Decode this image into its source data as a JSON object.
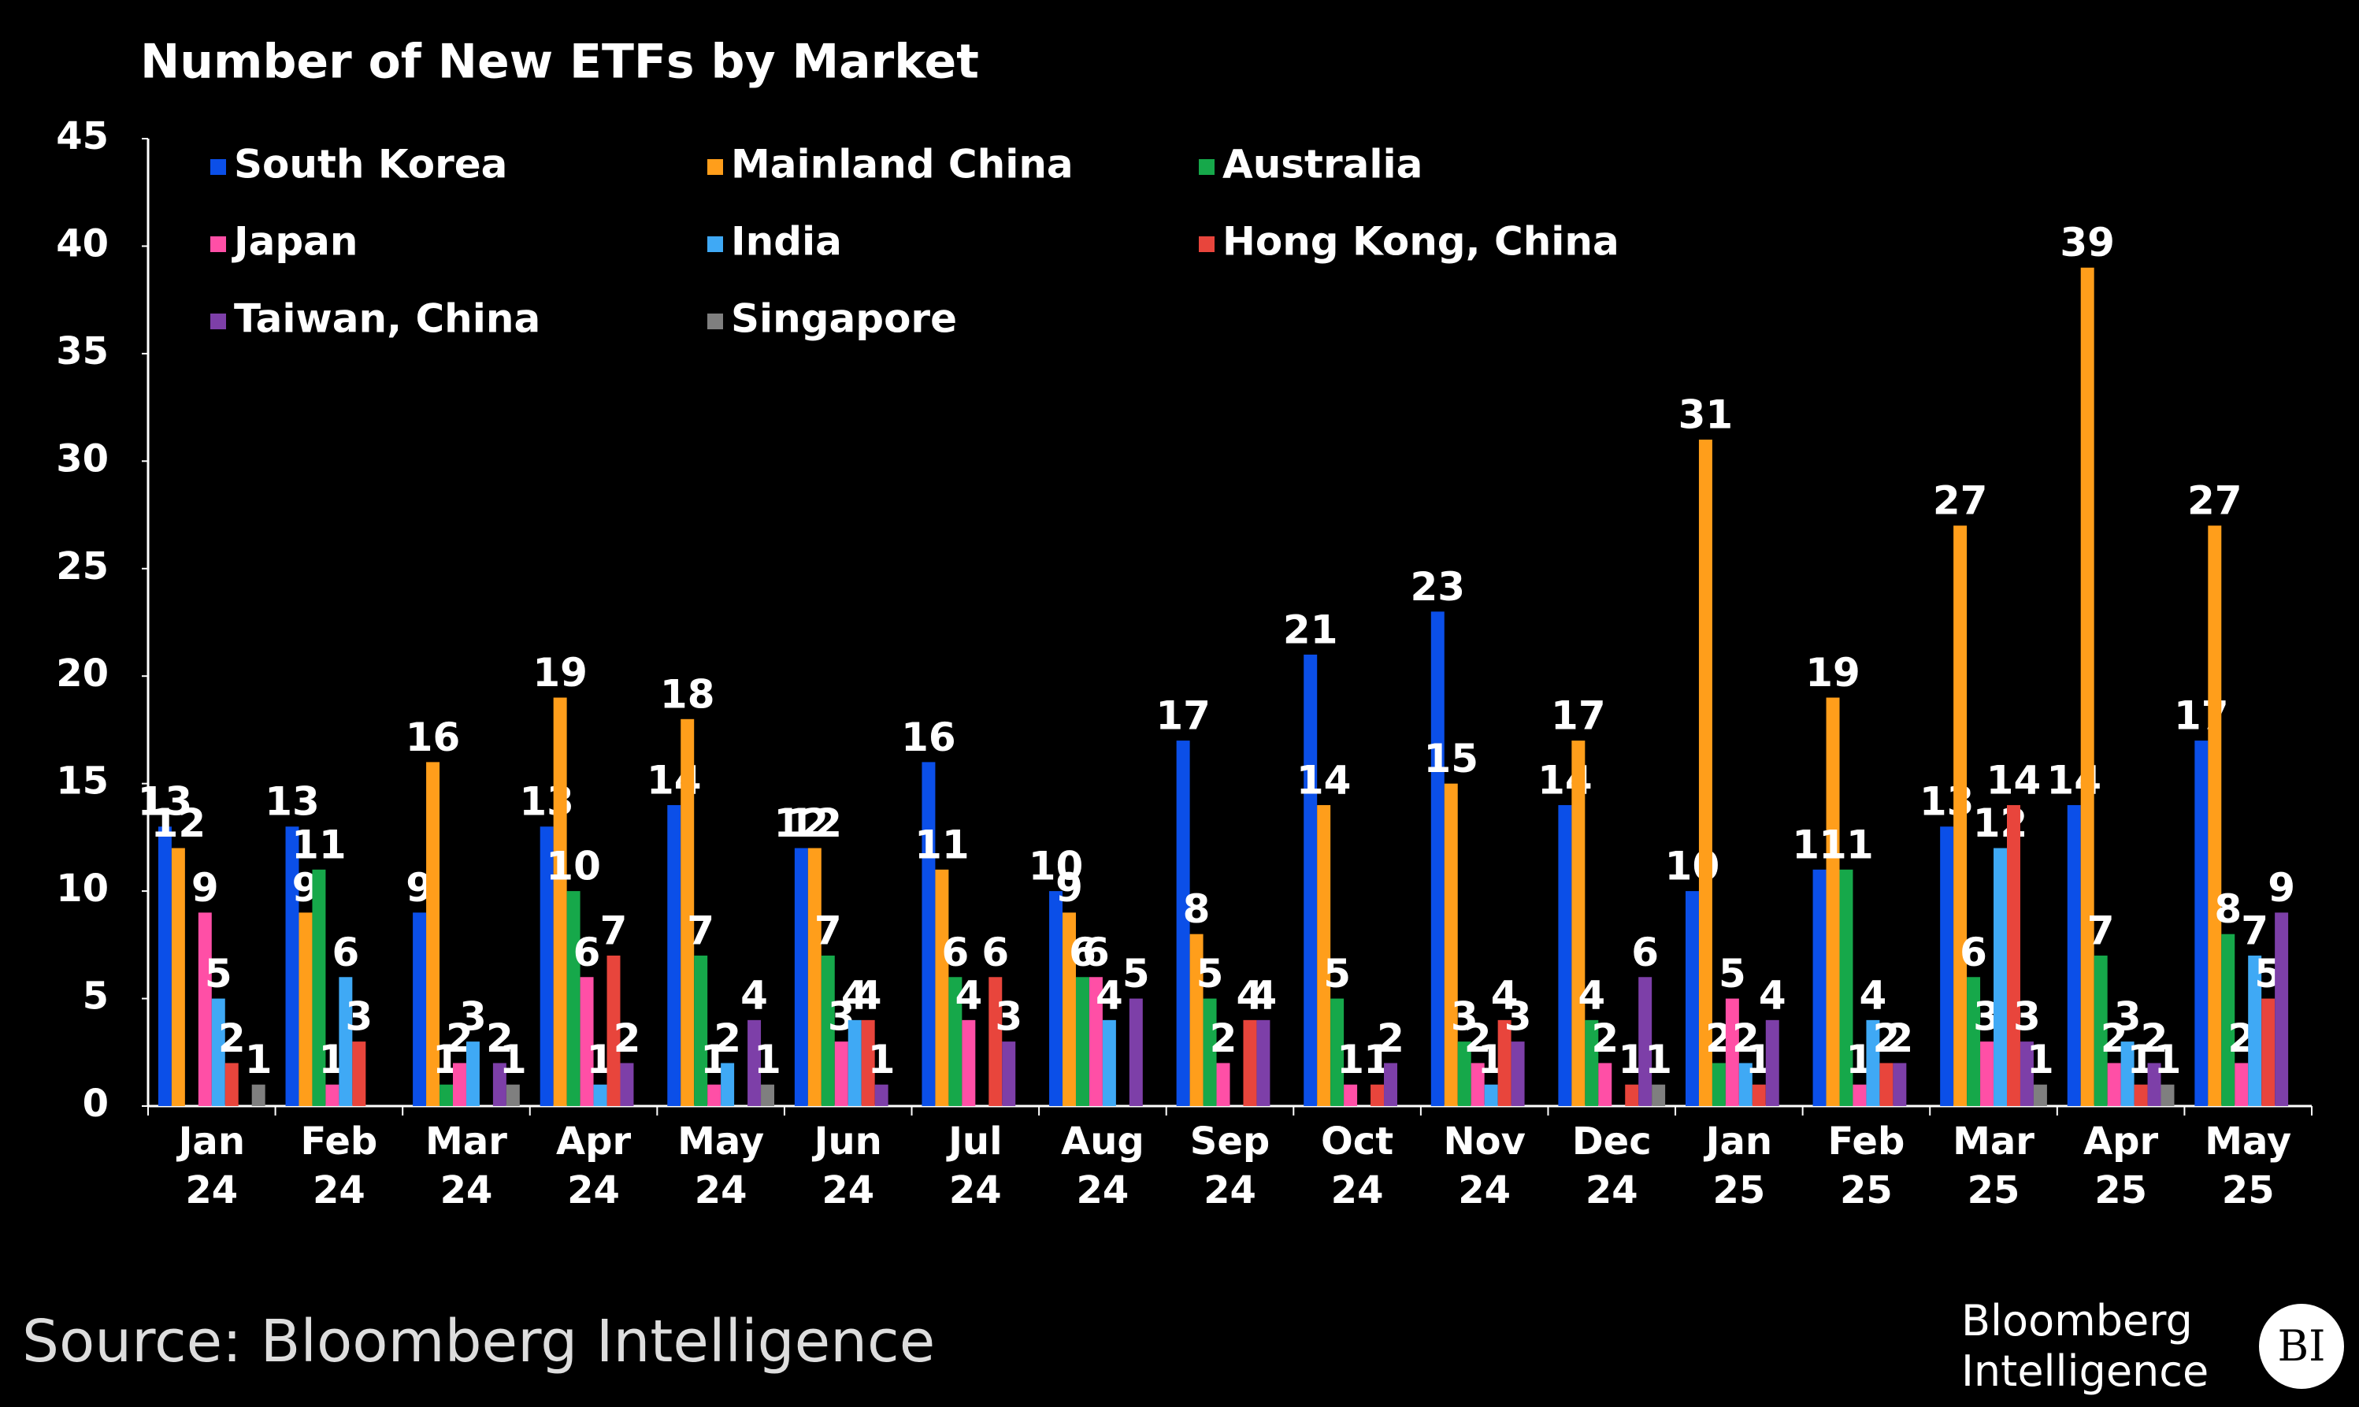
{
  "chart_data": {
    "type": "bar",
    "title": "Number of New ETFs by Market",
    "categories": [
      "Jan 24",
      "Feb 24",
      "Mar 24",
      "Apr 24",
      "May 24",
      "Jun 24",
      "Jul 24",
      "Aug 24",
      "Sep 24",
      "Oct 24",
      "Nov 24",
      "Dec 24",
      "Jan 25",
      "Feb 25",
      "Mar 25",
      "Apr 25",
      "May 25"
    ],
    "series": [
      {
        "name": "South Korea",
        "color": "#0b4fe8",
        "values": [
          13,
          13,
          9,
          13,
          14,
          12,
          16,
          10,
          17,
          21,
          23,
          14,
          10,
          11,
          13,
          14,
          17
        ]
      },
      {
        "name": "Mainland China",
        "color": "#ff9e1b",
        "values": [
          12,
          9,
          16,
          19,
          18,
          12,
          11,
          9,
          8,
          14,
          15,
          17,
          31,
          19,
          27,
          39,
          27
        ]
      },
      {
        "name": "Australia",
        "color": "#16a84a",
        "values": [
          null,
          11,
          1,
          10,
          7,
          7,
          6,
          6,
          5,
          5,
          3,
          4,
          2,
          11,
          6,
          7,
          8
        ]
      },
      {
        "name": "Japan",
        "color": "#ff4fa6",
        "values": [
          9,
          1,
          2,
          6,
          1,
          3,
          4,
          6,
          2,
          1,
          2,
          2,
          5,
          1,
          3,
          2,
          2
        ]
      },
      {
        "name": "India",
        "color": "#3fa9f5",
        "values": [
          5,
          6,
          3,
          1,
          2,
          4,
          null,
          4,
          null,
          null,
          1,
          null,
          2,
          4,
          12,
          3,
          7
        ]
      },
      {
        "name": "Hong Kong, China",
        "color": "#e8453c",
        "values": [
          2,
          3,
          null,
          7,
          null,
          4,
          6,
          null,
          4,
          1,
          4,
          1,
          1,
          2,
          14,
          1,
          5
        ]
      },
      {
        "name": "Taiwan, China",
        "color": "#7d3fa8",
        "values": [
          null,
          null,
          2,
          2,
          4,
          1,
          3,
          5,
          4,
          2,
          3,
          6,
          4,
          2,
          3,
          2,
          9
        ]
      },
      {
        "name": "Singapore",
        "color": "#7f7f7f",
        "values": [
          1,
          null,
          1,
          null,
          1,
          null,
          null,
          null,
          null,
          null,
          null,
          1,
          null,
          null,
          1,
          1,
          null
        ]
      }
    ],
    "ylim": [
      0,
      45
    ],
    "yticks": [
      0,
      5,
      10,
      15,
      20,
      25,
      30,
      35,
      40,
      45
    ],
    "source": "Source: Bloomberg Intelligence",
    "logo_text": "Bloomberg Intelligence",
    "logo_badge": "BI"
  }
}
